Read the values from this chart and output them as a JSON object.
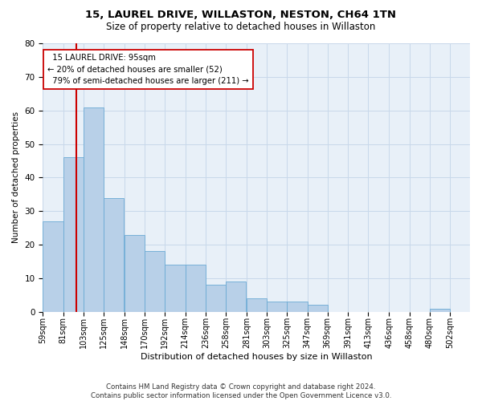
{
  "title": "15, LAUREL DRIVE, WILLASTON, NESTON, CH64 1TN",
  "subtitle": "Size of property relative to detached houses in Willaston",
  "xlabel": "Distribution of detached houses by size in Willaston",
  "ylabel": "Number of detached properties",
  "bar_values": [
    27,
    46,
    61,
    34,
    23,
    18,
    14,
    14,
    8,
    9,
    4,
    3,
    3,
    2,
    0,
    0,
    0,
    0,
    0,
    1
  ],
  "categories": [
    "59sqm",
    "81sqm",
    "103sqm",
    "125sqm",
    "148sqm",
    "170sqm",
    "192sqm",
    "214sqm",
    "236sqm",
    "258sqm",
    "281sqm",
    "303sqm",
    "325sqm",
    "347sqm",
    "369sqm",
    "391sqm",
    "413sqm",
    "436sqm",
    "458sqm",
    "480sqm",
    "502sqm"
  ],
  "bar_color": "#b8d0e8",
  "bar_edge_color": "#6aaad4",
  "property_line_x": 95,
  "property_line_color": "#cc0000",
  "annotation_text": "  15 LAUREL DRIVE: 95sqm\n← 20% of detached houses are smaller (52)\n  79% of semi-detached houses are larger (211) →",
  "annotation_box_color": "#ffffff",
  "annotation_box_edge": "#cc0000",
  "ylim": [
    0,
    80
  ],
  "yticks": [
    0,
    10,
    20,
    30,
    40,
    50,
    60,
    70,
    80
  ],
  "footer": "Contains HM Land Registry data © Crown copyright and database right 2024.\nContains public sector information licensed under the Open Government Licence v3.0.",
  "grid_color": "#c8d8ea",
  "background_color": "#e8f0f8"
}
